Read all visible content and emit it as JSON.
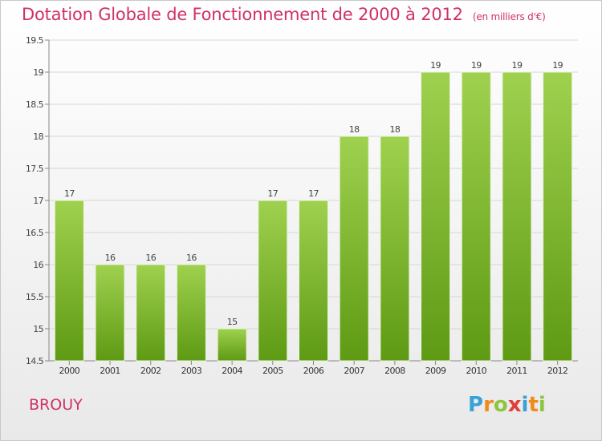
{
  "title": "Dotation Globale de Fonctionnement de 2000 à 2012",
  "unit": "(en milliers d'€)",
  "commune": "BROUY",
  "logo": {
    "letters": [
      "P",
      "r",
      "o",
      "x",
      "i",
      "t",
      "i"
    ],
    "colors": [
      "#3aa0d8",
      "#f08a1c",
      "#8cc63f",
      "#e0403a",
      "#3aa0d8",
      "#f08a1c",
      "#8cc63f"
    ]
  },
  "colors": {
    "bar_top": "#9fd14f",
    "bar_bottom": "#5e9a14",
    "title": "#d0306a",
    "grid": "#d6d6d6"
  },
  "chart_data": {
    "type": "bar",
    "categories": [
      "2000",
      "2001",
      "2002",
      "2003",
      "2004",
      "2005",
      "2006",
      "2007",
      "2008",
      "2009",
      "2010",
      "2011",
      "2012"
    ],
    "values": [
      17,
      16,
      16,
      16,
      15,
      17,
      17,
      18,
      18,
      19,
      19,
      19,
      19
    ],
    "ylim": [
      14.5,
      19.5
    ],
    "yticks": [
      "14.5",
      "15",
      "15.5",
      "16",
      "16.5",
      "17",
      "17.5",
      "18",
      "18.5",
      "19",
      "19.5"
    ],
    "grid": true
  }
}
